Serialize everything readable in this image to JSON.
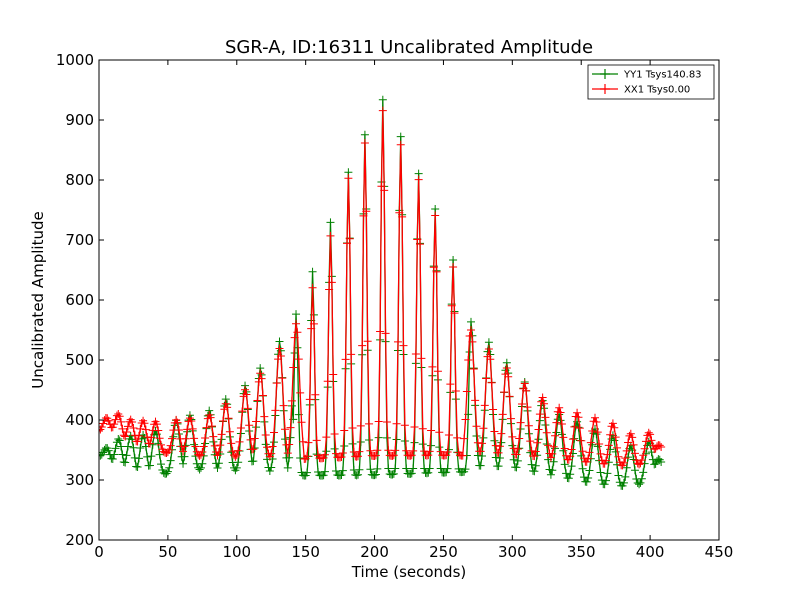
{
  "chart_data": {
    "type": "line",
    "title": "SGR-A, ID:16311 Uncalibrated Amplitude",
    "xlabel": "Time (seconds)",
    "ylabel": "Uncalibrated Amplitude",
    "xlim": [
      0,
      450
    ],
    "ylim": [
      200,
      1000
    ],
    "xticks": [
      0,
      50,
      100,
      150,
      200,
      250,
      300,
      350,
      400,
      450
    ],
    "yticks": [
      200,
      300,
      400,
      500,
      600,
      700,
      800,
      900,
      1000
    ],
    "grid": false,
    "legend_position": "top-right",
    "marker": "+",
    "series": [
      {
        "name": "YY1 Tsys140.83",
        "color": "#008000",
        "x_start": 0,
        "x_end": 408,
        "base_anchors": [
          [
            0,
            355
          ],
          [
            18,
            330
          ],
          [
            28,
            320
          ],
          [
            45,
            322
          ],
          [
            60,
            332
          ],
          [
            90,
            330
          ],
          [
            120,
            328
          ],
          [
            150,
            322
          ],
          [
            200,
            323
          ],
          [
            260,
            328
          ],
          [
            300,
            330
          ],
          [
            330,
            318
          ],
          [
            360,
            305
          ],
          [
            390,
            300
          ],
          [
            408,
            345
          ]
        ],
        "amp_anchors": [
          [
            0,
            5
          ],
          [
            18,
            60
          ],
          [
            40,
            75
          ],
          [
            80,
            100
          ],
          [
            110,
            150
          ],
          [
            140,
            250
          ],
          [
            160,
            370
          ],
          [
            180,
            500
          ],
          [
            205,
            630
          ],
          [
            230,
            510
          ],
          [
            250,
            410
          ],
          [
            270,
            250
          ],
          [
            300,
            170
          ],
          [
            330,
            110
          ],
          [
            370,
            90
          ],
          [
            400,
            55
          ],
          [
            408,
            0
          ]
        ],
        "peaks": [
          5,
          14,
          23,
          32,
          41,
          56,
          66,
          80,
          92,
          106,
          117,
          131,
          143,
          155,
          168,
          181,
          193,
          206,
          219,
          232,
          244,
          257,
          270,
          283,
          296,
          309,
          322,
          334,
          347,
          360,
          373,
          386,
          399,
          408
        ]
      },
      {
        "name": "XX1 Tsys0.00",
        "color": "#ff0000",
        "x_start": 0,
        "x_end": 408,
        "base_anchors": [
          [
            0,
            395
          ],
          [
            10,
            395
          ],
          [
            22,
            370
          ],
          [
            40,
            362
          ],
          [
            60,
            356
          ],
          [
            90,
            352
          ],
          [
            120,
            352
          ],
          [
            150,
            350
          ],
          [
            200,
            355
          ],
          [
            260,
            356
          ],
          [
            300,
            352
          ],
          [
            330,
            348
          ],
          [
            360,
            340
          ],
          [
            390,
            335
          ],
          [
            408,
            370
          ]
        ],
        "amp_anchors": [
          [
            0,
            15
          ],
          [
            18,
            45
          ],
          [
            40,
            50
          ],
          [
            80,
            70
          ],
          [
            110,
            120
          ],
          [
            140,
            210
          ],
          [
            160,
            310
          ],
          [
            180,
            460
          ],
          [
            205,
            580
          ],
          [
            230,
            470
          ],
          [
            250,
            370
          ],
          [
            270,
            210
          ],
          [
            300,
            140
          ],
          [
            330,
            90
          ],
          [
            370,
            75
          ],
          [
            400,
            40
          ],
          [
            408,
            0
          ]
        ],
        "peaks": [
          5,
          14,
          23,
          32,
          41,
          56,
          66,
          80,
          92,
          106,
          117,
          131,
          143,
          155,
          168,
          181,
          193,
          206,
          219,
          232,
          244,
          257,
          270,
          283,
          296,
          309,
          322,
          334,
          347,
          360,
          373,
          386,
          399,
          408
        ]
      }
    ]
  }
}
